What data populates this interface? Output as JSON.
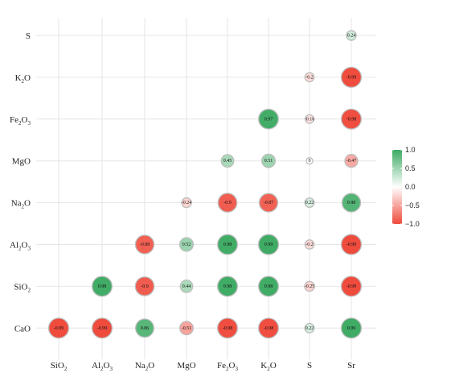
{
  "chart_data": {
    "type": "heatmap",
    "title": "",
    "xlabel": "",
    "ylabel": "",
    "x_categories": [
      "SiO2",
      "Al2O3",
      "Na2O",
      "MgO",
      "Fe2O3",
      "K2O",
      "S",
      "Sr"
    ],
    "y_categories": [
      "CaO",
      "SiO2",
      "Al2O3",
      "Na2O",
      "MgO",
      "Fe2O3",
      "K2O",
      "S"
    ],
    "x_tick_labels": [
      {
        "base": "SiO",
        "sub": "2"
      },
      {
        "base": "Al",
        "sub": "2",
        "mid": "O",
        "sub2": "3"
      },
      {
        "base": "Na",
        "sub": "2",
        "mid": "O"
      },
      {
        "base": "MgO"
      },
      {
        "base": "Fe",
        "sub": "2",
        "mid": "O",
        "sub2": "3"
      },
      {
        "base": "K",
        "sub": "2",
        "mid": "O"
      },
      {
        "base": "S"
      },
      {
        "base": "Sr"
      }
    ],
    "y_tick_labels": [
      {
        "base": "CaO"
      },
      {
        "base": "SiO",
        "sub": "2"
      },
      {
        "base": "Al",
        "sub": "2",
        "mid": "O",
        "sub2": "3"
      },
      {
        "base": "Na",
        "sub": "2",
        "mid": "O"
      },
      {
        "base": "MgO"
      },
      {
        "base": "Fe",
        "sub": "2",
        "mid": "O",
        "sub2": "3"
      },
      {
        "base": "K",
        "sub": "2",
        "mid": "O"
      },
      {
        "base": "S"
      }
    ],
    "cells": [
      {
        "x": "SiO2",
        "y": "CaO",
        "value": -0.99,
        "label": "-0.99"
      },
      {
        "x": "Al2O3",
        "y": "CaO",
        "value": -0.99,
        "label": "-0.99"
      },
      {
        "x": "Na2O",
        "y": "CaO",
        "value": 0.86,
        "label": "0.86"
      },
      {
        "x": "MgO",
        "y": "CaO",
        "value": -0.51,
        "label": "-0.51"
      },
      {
        "x": "Fe2O3",
        "y": "CaO",
        "value": -0.98,
        "label": "-0.98"
      },
      {
        "x": "K2O",
        "y": "CaO",
        "value": -0.98,
        "label": "-0.98"
      },
      {
        "x": "S",
        "y": "CaO",
        "value": 0.22,
        "label": "0.22"
      },
      {
        "x": "Sr",
        "y": "CaO",
        "value": 0.99,
        "label": "0.99"
      },
      {
        "x": "Al2O3",
        "y": "SiO2",
        "value": 0.98,
        "label": "0.98"
      },
      {
        "x": "Na2O",
        "y": "SiO2",
        "value": -0.9,
        "label": "-0.9"
      },
      {
        "x": "MgO",
        "y": "SiO2",
        "value": 0.44,
        "label": "0.44"
      },
      {
        "x": "Fe2O3",
        "y": "SiO2",
        "value": 0.98,
        "label": "0.98"
      },
      {
        "x": "K2O",
        "y": "SiO2",
        "value": 0.98,
        "label": "0.98"
      },
      {
        "x": "S",
        "y": "SiO2",
        "value": -0.25,
        "label": "-0.25"
      },
      {
        "x": "Sr",
        "y": "SiO2",
        "value": -0.99,
        "label": "-0.99"
      },
      {
        "x": "Na2O",
        "y": "Al2O3",
        "value": -0.88,
        "label": "-0.88"
      },
      {
        "x": "MgO",
        "y": "Al2O3",
        "value": 0.52,
        "label": "0.52"
      },
      {
        "x": "Fe2O3",
        "y": "Al2O3",
        "value": 0.98,
        "label": "0.98"
      },
      {
        "x": "K2O",
        "y": "Al2O3",
        "value": 0.99,
        "label": "0.99"
      },
      {
        "x": "S",
        "y": "Al2O3",
        "value": -0.2,
        "label": "-0.2"
      },
      {
        "x": "Sr",
        "y": "Al2O3",
        "value": -0.99,
        "label": "-0.99"
      },
      {
        "x": "MgO",
        "y": "Na2O",
        "value": -0.24,
        "label": "-0.24"
      },
      {
        "x": "Fe2O3",
        "y": "Na2O",
        "value": -0.9,
        "label": "-0.9"
      },
      {
        "x": "K2O",
        "y": "Na2O",
        "value": -0.87,
        "label": "-0.87"
      },
      {
        "x": "S",
        "y": "Na2O",
        "value": 0.22,
        "label": "0.22"
      },
      {
        "x": "Sr",
        "y": "Na2O",
        "value": 0.88,
        "label": "0.88"
      },
      {
        "x": "Fe2O3",
        "y": "MgO",
        "value": 0.45,
        "label": "0.45"
      },
      {
        "x": "K2O",
        "y": "MgO",
        "value": 0.51,
        "label": "0.51"
      },
      {
        "x": "S",
        "y": "MgO",
        "value": 0,
        "label": "0"
      },
      {
        "x": "Sr",
        "y": "MgO",
        "value": -0.47,
        "label": "-0.47"
      },
      {
        "x": "K2O",
        "y": "Fe2O3",
        "value": 0.97,
        "label": "0.97"
      },
      {
        "x": "S",
        "y": "Fe2O3",
        "value": -0.16,
        "label": "-0.16"
      },
      {
        "x": "Sr",
        "y": "Fe2O3",
        "value": -0.98,
        "label": "-0.98"
      },
      {
        "x": "S",
        "y": "K2O",
        "value": -0.2,
        "label": "-0.2"
      },
      {
        "x": "Sr",
        "y": "K2O",
        "value": -0.99,
        "label": "-0.99"
      },
      {
        "x": "Sr",
        "y": "S",
        "value": 0.24,
        "label": "0.24"
      }
    ],
    "colorbar": {
      "ticks": [
        1.0,
        0.5,
        0.0,
        -0.5,
        -1.0
      ],
      "tick_labels": [
        "1.0",
        "0.5",
        "0.0",
        "−0.5",
        "−1.0"
      ],
      "range": [
        -1,
        1
      ],
      "color_positive": "#3daa63",
      "color_mid": "#ffffff",
      "color_negative": "#ef4a3c"
    },
    "grid": true,
    "legend_position": "right"
  }
}
